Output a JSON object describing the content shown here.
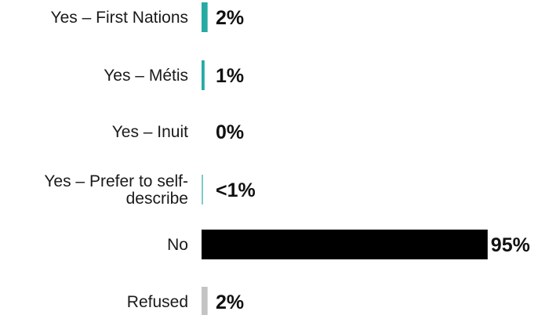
{
  "colors": {
    "indigenous": "#26aaa2",
    "no": "#000000",
    "refused": "#c4c4c4",
    "text": "#1a1a1a"
  },
  "chart_data": {
    "type": "bar",
    "orientation": "horizontal",
    "title": "",
    "xlabel": "",
    "ylabel": "",
    "xlim": [
      0,
      100
    ],
    "categories": [
      [
        "Yes – First Nations"
      ],
      [
        "Yes – Métis"
      ],
      [
        "Yes – Inuit"
      ],
      [
        "Yes – Prefer to self-",
        "describe"
      ],
      [
        "No"
      ],
      [
        "Refused"
      ]
    ],
    "values": [
      2,
      1,
      0,
      0.4,
      95,
      2
    ],
    "value_labels": [
      "2%",
      "1%",
      "0%",
      "<1%",
      "95%",
      "2%"
    ],
    "bar_colors": [
      "indigenous",
      "indigenous",
      "indigenous",
      "indigenous",
      "no",
      "refused"
    ],
    "grid": false,
    "legend": "none"
  }
}
